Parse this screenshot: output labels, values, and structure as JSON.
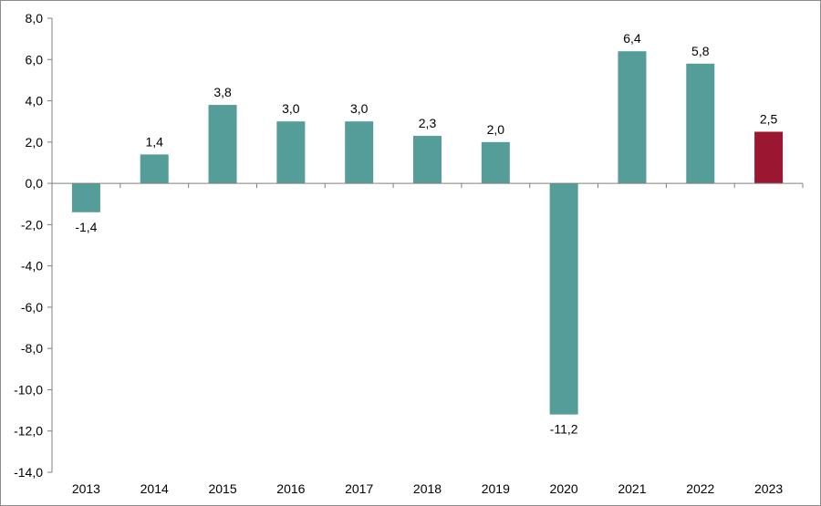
{
  "chart_data": {
    "type": "bar",
    "categories": [
      "2013",
      "2014",
      "2015",
      "2016",
      "2017",
      "2018",
      "2019",
      "2020",
      "2021",
      "2022",
      "2023"
    ],
    "values": [
      -1.4,
      1.4,
      3.8,
      3.0,
      3.0,
      2.3,
      2.0,
      -11.2,
      6.4,
      5.8,
      2.5
    ],
    "data_labels": [
      "-1,4",
      "1,4",
      "3,8",
      "3,0",
      "3,0",
      "2,3",
      "2,0",
      "-11,2",
      "6,4",
      "5,8",
      "2,5"
    ],
    "yticks": [
      8,
      6,
      4,
      2,
      0,
      -2,
      -4,
      -6,
      -8,
      -10,
      -12,
      -14
    ],
    "ytick_labels": [
      "8,0",
      "6,0",
      "4,0",
      "2,0",
      "0,0",
      "-2,0",
      "-4,0",
      "-6,0",
      "-8,0",
      "-10,0",
      "-12,0",
      "-14,0"
    ],
    "ylim": [
      -14,
      8
    ],
    "title": "",
    "xlabel": "",
    "ylabel": "",
    "grid": false,
    "legend": "none",
    "colors": {
      "bar": "#559d99",
      "highlight": "#9b1631",
      "axis": "#7f7f7f"
    },
    "highlight_category": "2023"
  }
}
